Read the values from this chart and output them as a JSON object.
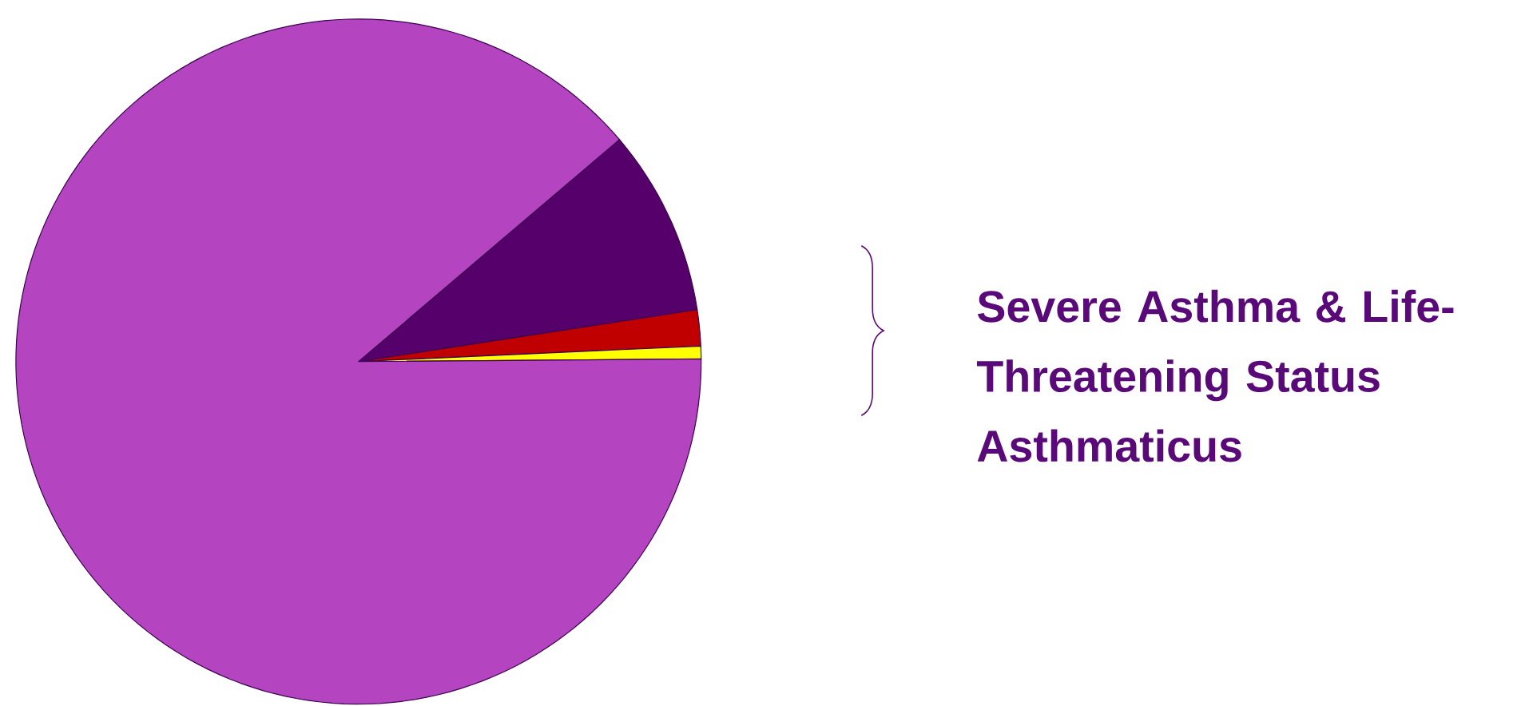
{
  "chart_data": {
    "type": "pie",
    "categories": [
      null,
      null,
      null,
      null
    ],
    "values": [
      8.8,
      1.7,
      0.6,
      88.9
    ],
    "colors": [
      "#56006b",
      "#c00000",
      "#ffff00",
      "#b444c0"
    ],
    "annotations": [
      "Severe Asthma & Life-Threatening Status Asthmaticus"
    ]
  }
}
